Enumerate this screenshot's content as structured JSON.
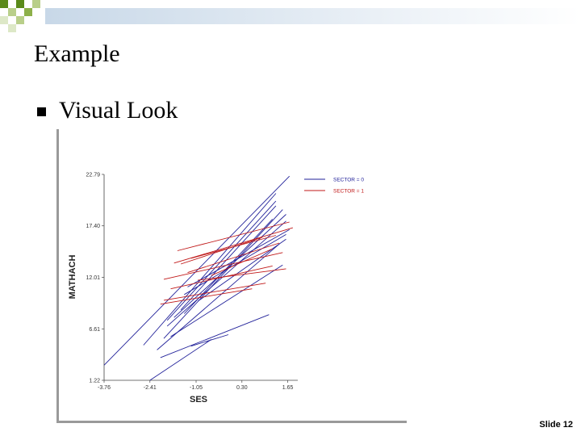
{
  "slide": {
    "title": "Example",
    "bullet": "Visual Look",
    "footer": "Slide 12"
  },
  "colors": {
    "decoration_green": "#5a8a1a",
    "sector0": "#22229a",
    "sector1": "#c01818"
  },
  "chart_data": {
    "type": "line",
    "xlabel": "SES",
    "ylabel": "MATHACH",
    "xlim": [
      -3.76,
      1.85
    ],
    "ylim": [
      1.22,
      22.79
    ],
    "x_ticks": [
      "-3.76",
      "-2.41",
      "-1.05",
      "0.30",
      "1.65"
    ],
    "y_ticks": [
      "1.22",
      "6.61",
      "12.01",
      "17.40",
      "22.79"
    ],
    "legend_position": "top-right",
    "series": [
      {
        "name": "SECTOR = 0",
        "color": "#22229a",
        "lines": [
          [
            [
              -3.76,
              2.8
            ],
            [
              1.7,
              22.6
            ]
          ],
          [
            [
              -2.6,
              4.9
            ],
            [
              1.3,
              20.8
            ]
          ],
          [
            [
              -2.0,
              5.6
            ],
            [
              1.5,
              19.1
            ]
          ],
          [
            [
              -1.9,
              7.5
            ],
            [
              1.3,
              20.0
            ]
          ],
          [
            [
              -1.7,
              7.8
            ],
            [
              1.6,
              18.6
            ]
          ],
          [
            [
              -1.5,
              8.6
            ],
            [
              1.3,
              19.5
            ]
          ],
          [
            [
              -1.4,
              8.2
            ],
            [
              1.2,
              18.1
            ]
          ],
          [
            [
              -1.9,
              6.9
            ],
            [
              1.6,
              17.9
            ]
          ],
          [
            [
              -1.4,
              10.2
            ],
            [
              1.6,
              16.5
            ]
          ],
          [
            [
              -2.2,
              4.4
            ],
            [
              1.4,
              15.5
            ]
          ],
          [
            [
              -1.8,
              5.8
            ],
            [
              1.5,
              13.3
            ]
          ],
          [
            [
              -1.3,
              11.0
            ],
            [
              1.7,
              17.0
            ]
          ],
          [
            [
              -2.41,
              1.22
            ],
            [
              -0.6,
              5.5
            ]
          ],
          [
            [
              -1.2,
              4.8
            ],
            [
              -0.1,
              6.0
            ]
          ],
          [
            [
              -2.1,
              3.6
            ],
            [
              1.1,
              8.1
            ]
          ],
          [
            [
              -1.0,
              9.5
            ],
            [
              1.6,
              16.0
            ]
          ]
        ]
      },
      {
        "name": "SECTOR = 1",
        "color": "#c01818",
        "lines": [
          [
            [
              -1.6,
              14.8
            ],
            [
              1.7,
              17.8
            ]
          ],
          [
            [
              -1.7,
              13.5
            ],
            [
              1.8,
              17.2
            ]
          ],
          [
            [
              -1.3,
              12.5
            ],
            [
              1.4,
              15.6
            ]
          ],
          [
            [
              -2.0,
              11.8
            ],
            [
              1.5,
              14.6
            ]
          ],
          [
            [
              -1.2,
              14.0
            ],
            [
              1.3,
              16.4
            ]
          ],
          [
            [
              -2.1,
              9.2
            ],
            [
              0.6,
              10.8
            ]
          ],
          [
            [
              -1.8,
              10.8
            ],
            [
              1.2,
              13.2
            ]
          ],
          [
            [
              -1.0,
              11.7
            ],
            [
              1.6,
              12.9
            ]
          ],
          [
            [
              -2.0,
              9.6
            ],
            [
              1.0,
              11.4
            ]
          ],
          [
            [
              -0.6,
              12.2
            ],
            [
              1.2,
              15.0
            ]
          ],
          [
            [
              -1.5,
              13.4
            ],
            [
              0.9,
              16.2
            ]
          ]
        ]
      }
    ]
  }
}
